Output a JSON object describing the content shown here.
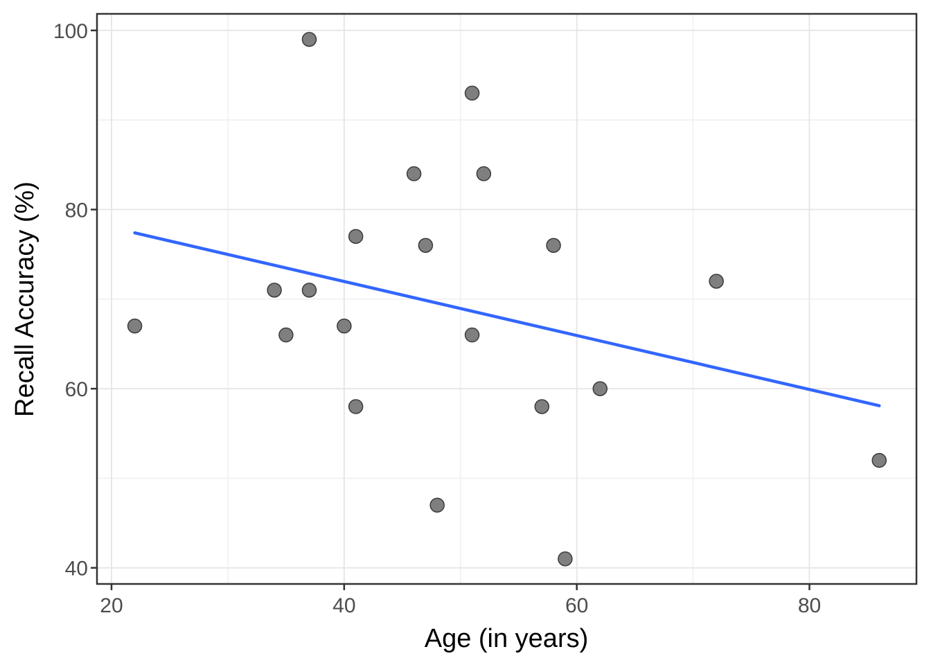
{
  "chart_data": {
    "type": "scatter",
    "title": "",
    "xlabel": "Age (in years)",
    "ylabel": "Recall Accuracy (%)",
    "x_ticks": [
      20,
      40,
      60,
      80
    ],
    "x_minor_ticks": [
      30,
      50,
      70
    ],
    "y_ticks": [
      40,
      60,
      80,
      100
    ],
    "y_minor_ticks": [
      50,
      70,
      90
    ],
    "xlim": [
      18.75,
      89.2
    ],
    "ylim": [
      38.2,
      101.85
    ],
    "grid": "major+minor",
    "legend": "none",
    "points": [
      [
        22,
        67
      ],
      [
        34,
        71
      ],
      [
        35,
        66
      ],
      [
        37,
        99
      ],
      [
        37,
        71
      ],
      [
        40,
        67
      ],
      [
        41,
        77
      ],
      [
        41,
        58
      ],
      [
        46,
        84
      ],
      [
        47,
        76
      ],
      [
        48,
        47
      ],
      [
        51,
        93
      ],
      [
        51,
        66
      ],
      [
        52,
        84
      ],
      [
        57,
        58
      ],
      [
        58,
        76
      ],
      [
        59,
        41
      ],
      [
        62,
        60
      ],
      [
        72,
        72
      ],
      [
        86,
        52
      ]
    ],
    "trend": {
      "type": "linear",
      "x_start": 22,
      "y_start": 77.4,
      "x_end": 86,
      "y_end": 58.1
    },
    "colors": {
      "background": "#ffffff",
      "panel_background": "#ffffff",
      "panel_border": "#333333",
      "grid_major": "#e7e7e7",
      "grid_minor": "#f2f2f2",
      "tick_mark": "#333333",
      "tick_label": "#4d4d4d",
      "axis_title": "#000000",
      "point_fill": "#7f7f7f",
      "point_stroke": "#3a3a3a",
      "trend_line": "#3366ff"
    }
  }
}
